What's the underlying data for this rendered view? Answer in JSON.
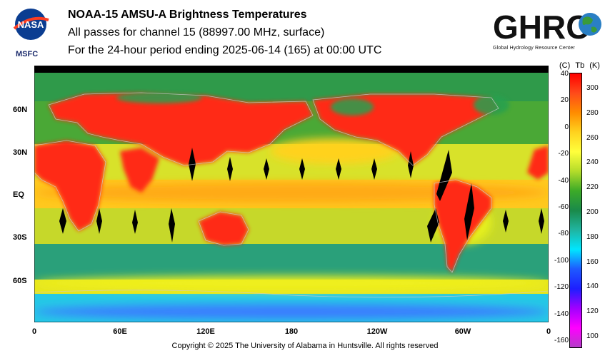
{
  "header": {
    "title": "NOAA-15 AMSU-A Brightness Temperatures",
    "subtitle": "All passes for channel 15 (88997.00 MHz, surface)",
    "period": "For the 24-hour period ending 2025-06-14 (165) at 00:00 UTC"
  },
  "logos": {
    "nasa_text": "NASA",
    "msfc_label": "MSFC",
    "ghrc_text": "GHRC",
    "ghrc_subtitle": "Global Hydrology Resource Center"
  },
  "map": {
    "lat_labels": [
      "60N",
      "30N",
      "EQ",
      "30S",
      "60S"
    ],
    "lon_labels": [
      "0",
      "60E",
      "120E",
      "180",
      "120W",
      "60W",
      "0"
    ]
  },
  "colorbar": {
    "header_left": "(C)",
    "header_mid": "Tb",
    "header_right": "(K)",
    "celsius_ticks": [
      "40",
      "20",
      "0",
      "-20",
      "-40",
      "-60",
      "-80",
      "-100",
      "-120",
      "-140",
      "-160"
    ],
    "kelvin_ticks": [
      "300",
      "280",
      "260",
      "240",
      "220",
      "200",
      "180",
      "160",
      "140",
      "120",
      "100"
    ],
    "colors": [
      "#ff0000",
      "#ff4a1a",
      "#ff8c00",
      "#ffd21e",
      "#ffff3c",
      "#b4dc2a",
      "#3caa28",
      "#1a8a4a",
      "#20b4a0",
      "#00e6ff",
      "#1e5aff",
      "#1e1eff",
      "#a000ff",
      "#ff00ff",
      "#b43cc8"
    ]
  },
  "footer": {
    "copyright": "Copyright © 2025 The University of Alabama in Huntsville.  All rights reserved"
  }
}
